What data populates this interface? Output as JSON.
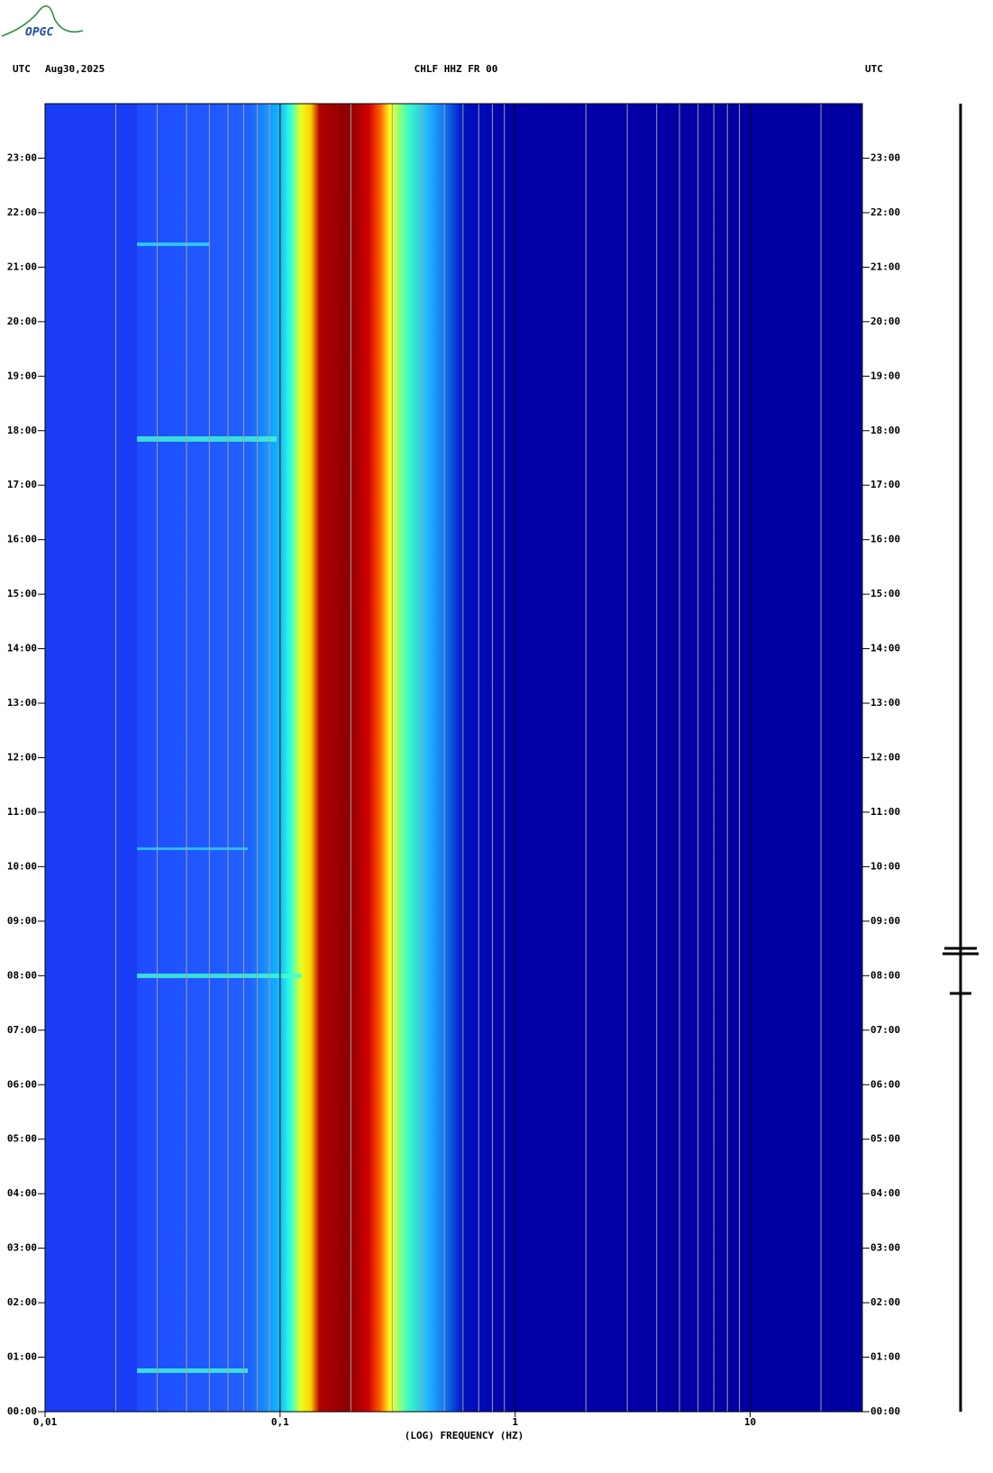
{
  "header": {
    "logo": "OPGC",
    "left_zone": "UTC",
    "date": "Aug30,2025",
    "station": "CHLF HHZ FR 00",
    "right_zone": "UTC"
  },
  "chart_data": {
    "type": "spectrogram",
    "xlabel": "(LOG) FREQUENCY (HZ)",
    "xscale": "log",
    "xlim": [
      0.01,
      30
    ],
    "xticks": [
      {
        "value": 0.01,
        "label": "0,01"
      },
      {
        "value": 0.1,
        "label": "0,1"
      },
      1,
      10
    ],
    "xminorticks": [
      0.02,
      0.03,
      0.04,
      0.05,
      0.06,
      0.07,
      0.08,
      0.09,
      0.2,
      0.3,
      0.4,
      0.5,
      0.6,
      0.7,
      0.8,
      0.9,
      2,
      3,
      4,
      5,
      6,
      7,
      8,
      9,
      20
    ],
    "ylim": [
      0,
      24
    ],
    "yticks": [
      {
        "value": 0,
        "label": "00:00"
      },
      {
        "value": 1,
        "label": "01:00"
      },
      {
        "value": 2,
        "label": "02:00"
      },
      {
        "value": 3,
        "label": "03:00"
      },
      {
        "value": 4,
        "label": "04:00"
      },
      {
        "value": 5,
        "label": "05:00"
      },
      {
        "value": 6,
        "label": "06:00"
      },
      {
        "value": 7,
        "label": "07:00"
      },
      {
        "value": 8,
        "label": "08:00"
      },
      {
        "value": 9,
        "label": "09:00"
      },
      {
        "value": 10,
        "label": "10:00"
      },
      {
        "value": 11,
        "label": "11:00"
      },
      {
        "value": 12,
        "label": "12:00"
      },
      {
        "value": 13,
        "label": "13:00"
      },
      {
        "value": 14,
        "label": "14:00"
      },
      {
        "value": 15,
        "label": "15:00"
      },
      {
        "value": 16,
        "label": "16:00"
      },
      {
        "value": 17,
        "label": "17:00"
      },
      {
        "value": 18,
        "label": "18:00"
      },
      {
        "value": 19,
        "label": "19:00"
      },
      {
        "value": 20,
        "label": "20:00"
      },
      {
        "value": 21,
        "label": "21:00"
      },
      {
        "value": 22,
        "label": "22:00"
      },
      {
        "value": 23,
        "label": "23:00"
      }
    ]
  }
}
